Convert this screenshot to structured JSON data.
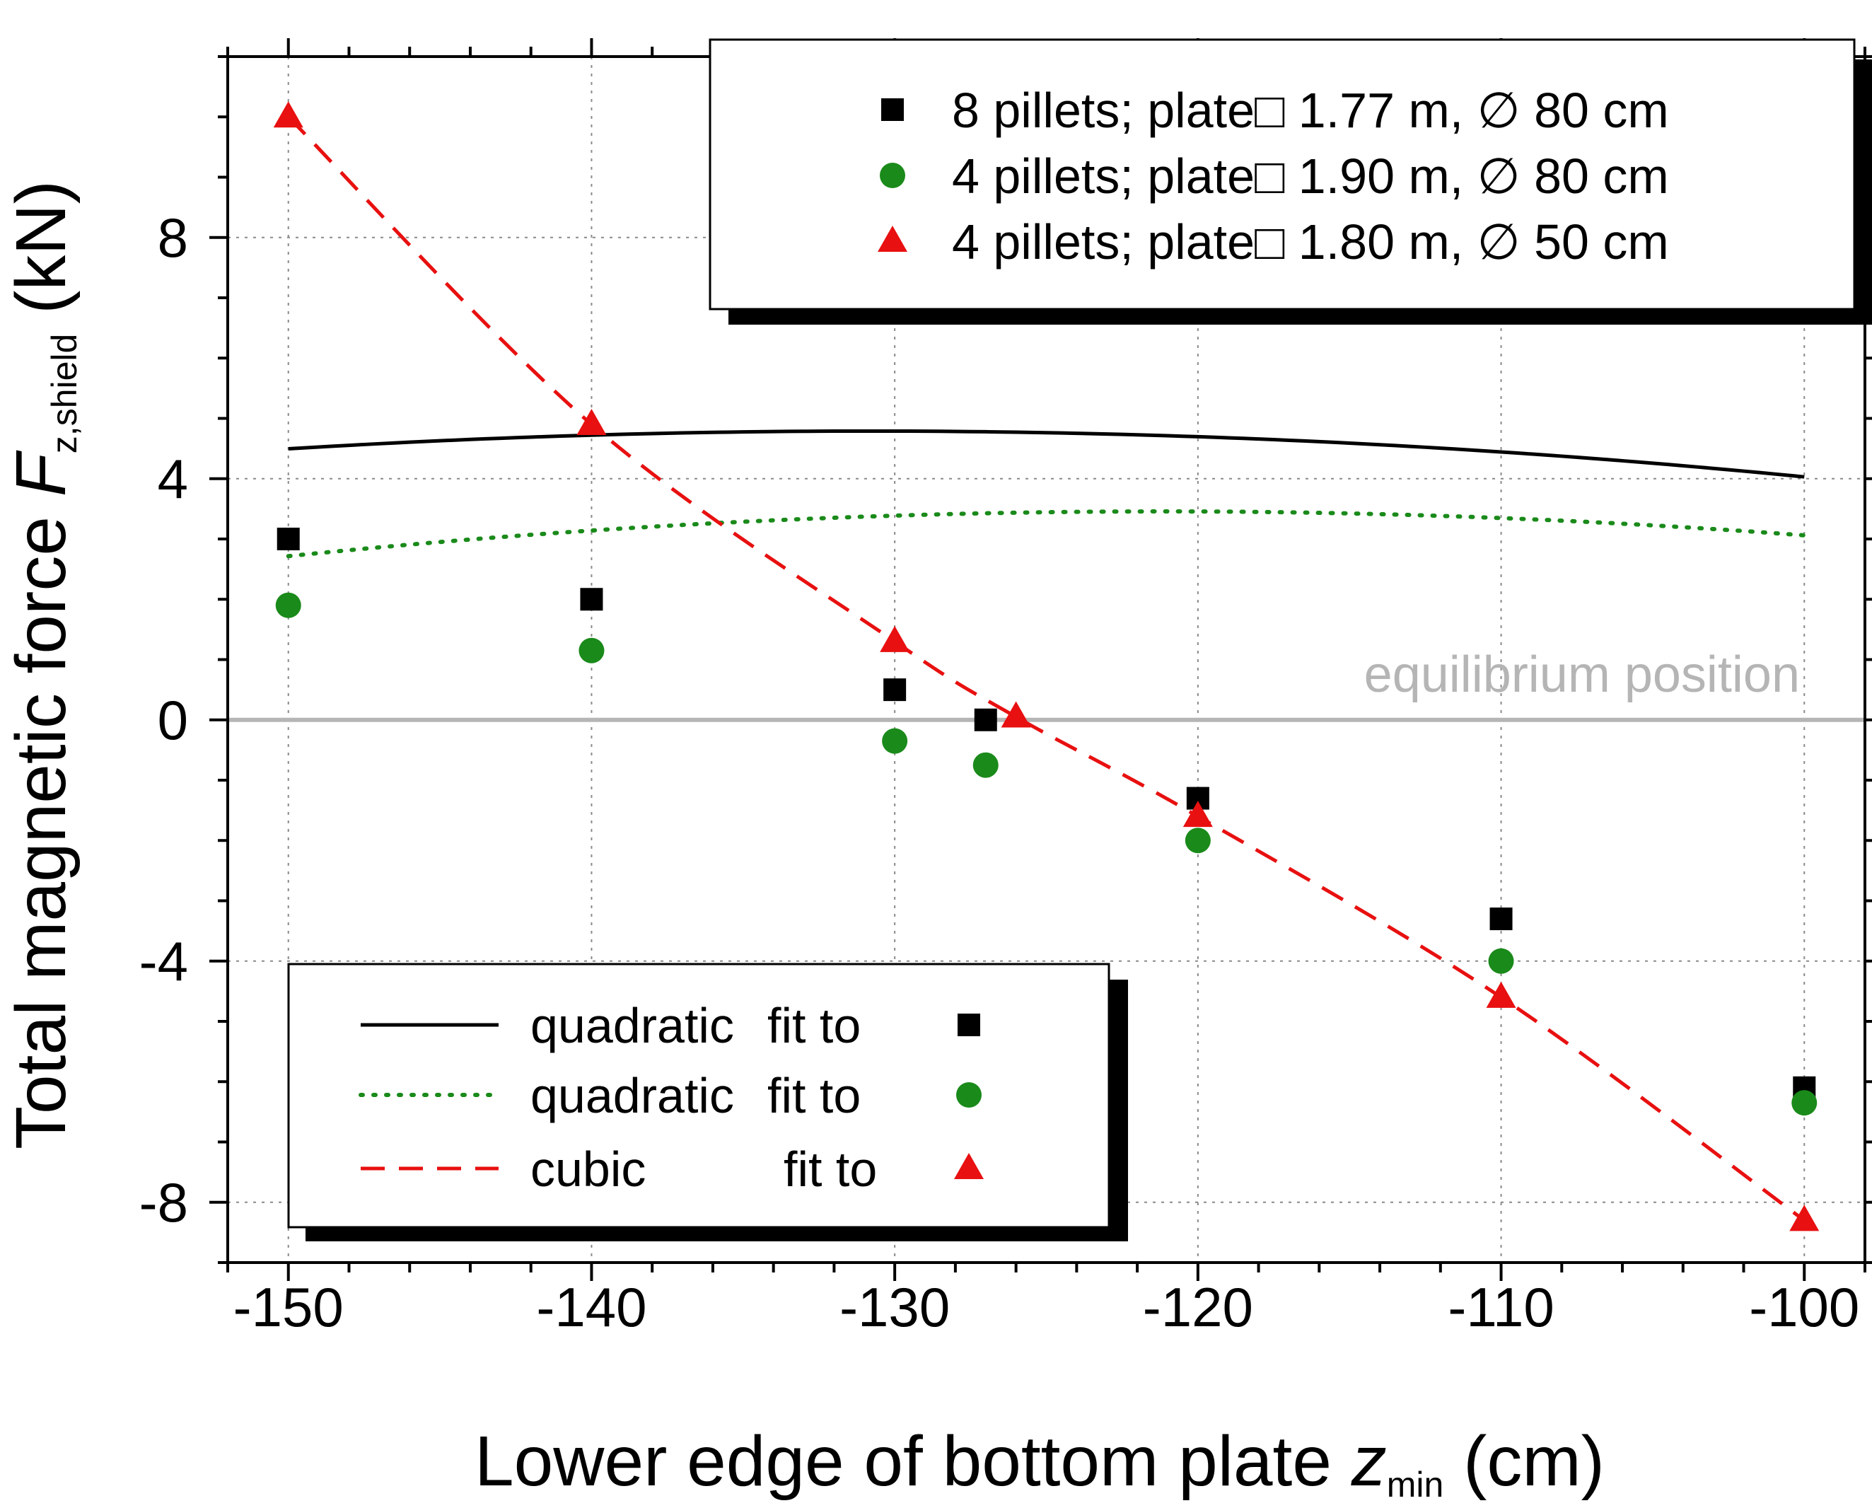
{
  "chart_data": {
    "type": "scatter",
    "xlabel": {
      "main": "Lower edge of bottom plate ",
      "var": "z",
      "sub": "min",
      "unit": " (cm)"
    },
    "ylabel": {
      "main": "Total magnetic force ",
      "var": "F",
      "sub": "z,shield",
      "unit": " (kN)"
    },
    "xlim": [
      -152,
      -98
    ],
    "ylim": [
      -9,
      11
    ],
    "xticks": [
      -150,
      -140,
      -130,
      -120,
      -110,
      -100
    ],
    "xtick_labels": [
      "-150",
      "-140",
      "-130",
      "-120",
      "-110",
      "-100"
    ],
    "yticks": [
      -8,
      -4,
      0,
      4,
      8
    ],
    "ytick_labels": [
      "-8",
      "-4",
      "0",
      "4",
      "8"
    ],
    "grid": true,
    "reference_line": {
      "y": 0,
      "label": "equilibrium position",
      "color": "#b5b5b5"
    },
    "series": [
      {
        "name": "8 pillets; plate□ 1.77 m, ∅ 80 cm",
        "marker": "square",
        "color": "#000000",
        "x": [
          -150,
          -140,
          -130,
          -127,
          -120,
          -110,
          -100
        ],
        "y": [
          3.0,
          2.0,
          0.5,
          0.0,
          -1.3,
          -3.3,
          -6.1
        ]
      },
      {
        "name": "4 pillets; plate□ 1.90 m, ∅ 80 cm",
        "marker": "circle",
        "color": "#1a8a1a",
        "x": [
          -150,
          -140,
          -130,
          -127,
          -120,
          -110,
          -100
        ],
        "y": [
          1.9,
          1.15,
          -0.35,
          -0.75,
          -2.0,
          -4.0,
          -6.35
        ]
      },
      {
        "name": "4 pillets; plate□ 1.80 m, ∅ 50 cm",
        "marker": "triangle",
        "color": "#e81010",
        "x": [
          -150,
          -140,
          -130,
          -126,
          -120,
          -110,
          -100
        ],
        "y": [
          10.0,
          4.9,
          1.3,
          0.05,
          -1.6,
          -4.6,
          -8.3
        ]
      }
    ],
    "fits": [
      {
        "name": "quadratic fit to",
        "label_main": "quadratic",
        "label_suffix": "fit to",
        "style": "solid",
        "color": "#000000",
        "target_marker": "square",
        "coef": [
          -8.9,
          -0.2093,
          -0.0008
        ]
      },
      {
        "name": "quadratic fit to",
        "label_main": "quadratic",
        "label_suffix": "fit to",
        "style": "dotted",
        "color": "#1a8a1a",
        "target_marker": "circle",
        "coef": [
          -9.6,
          -0.2156,
          -0.00089
        ]
      },
      {
        "name": "cubic fit to",
        "label_main": "cubic",
        "label_suffix": "fit to",
        "style": "dashed",
        "color": "#e81010",
        "target_marker": "triangle",
        "points": [
          [
            -150,
            10.0
          ],
          [
            -140,
            4.9
          ],
          [
            -130,
            1.3
          ],
          [
            -126,
            0.05
          ],
          [
            -120,
            -1.6
          ],
          [
            -110,
            -4.6
          ],
          [
            -100,
            -8.3
          ]
        ]
      }
    ],
    "legend_upper_position": "top-right",
    "legend_lower_position": "bottom-left"
  }
}
